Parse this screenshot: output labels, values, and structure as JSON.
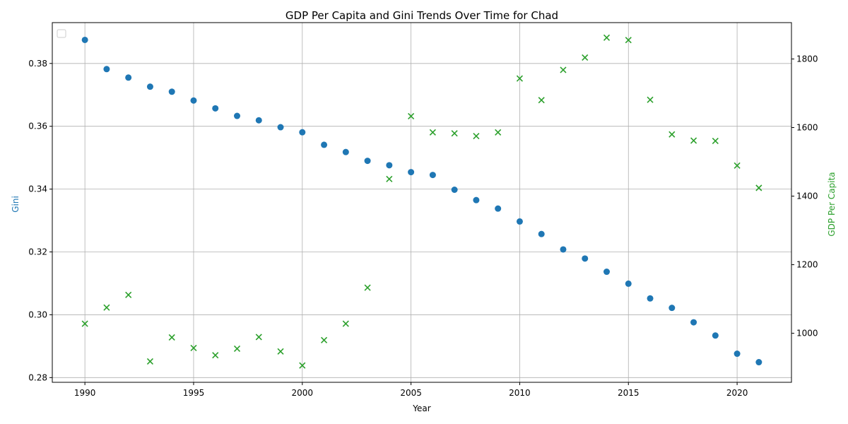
{
  "chart_data": {
    "type": "scatter",
    "title": "GDP Per Capita and Gini Trends Over Time for Chad",
    "xlabel": "Year",
    "ylabel_left": "Gini",
    "ylabel_right": "GDP Per Capita",
    "xlim": [
      1988.5,
      2022.5
    ],
    "ylim_left": [
      0.2785,
      0.393
    ],
    "ylim_right": [
      857,
      1906
    ],
    "x_ticks": [
      1990,
      1995,
      2000,
      2005,
      2010,
      2015,
      2020
    ],
    "y_left_ticks": [
      "0.28",
      "0.30",
      "0.32",
      "0.34",
      "0.36",
      "0.38"
    ],
    "y_right_ticks": [
      1000,
      1200,
      1400,
      1600,
      1800
    ],
    "grid": true,
    "legend": "top-left (empty)",
    "colors": {
      "gini": "#1f77b4",
      "gdp": "#2ca02c"
    },
    "x": [
      1990,
      1991,
      1992,
      1993,
      1994,
      1995,
      1996,
      1997,
      1998,
      1999,
      2000,
      2001,
      2002,
      2003,
      2004,
      2005,
      2006,
      2007,
      2008,
      2009,
      2010,
      2011,
      2012,
      2013,
      2014,
      2015,
      2016,
      2017,
      2018,
      2019,
      2020,
      2021
    ],
    "series": [
      {
        "axis": "left",
        "marker": "circle",
        "values": [
          0.3875,
          0.3782,
          0.3755,
          0.3726,
          0.371,
          0.3682,
          0.3657,
          0.3633,
          0.3619,
          0.3597,
          0.3581,
          0.3541,
          0.3518,
          0.349,
          0.3476,
          0.3454,
          0.3445,
          0.3398,
          0.3365,
          0.3338,
          0.3297,
          0.3257,
          0.3208,
          0.3179,
          0.3137,
          0.3099,
          0.3052,
          0.3022,
          0.2976,
          0.2934,
          0.2876,
          0.2849
        ]
      },
      {
        "axis": "right",
        "marker": "x",
        "values": [
          1028,
          1075,
          1112,
          918,
          988,
          957,
          936,
          955,
          989,
          947,
          906,
          980,
          1028,
          1133,
          1450,
          1633,
          1586,
          1583,
          1575,
          1586,
          1743,
          1680,
          1768,
          1804,
          1862,
          1855,
          1681,
          1580,
          1562,
          1561,
          1489,
          1424
        ]
      }
    ]
  }
}
